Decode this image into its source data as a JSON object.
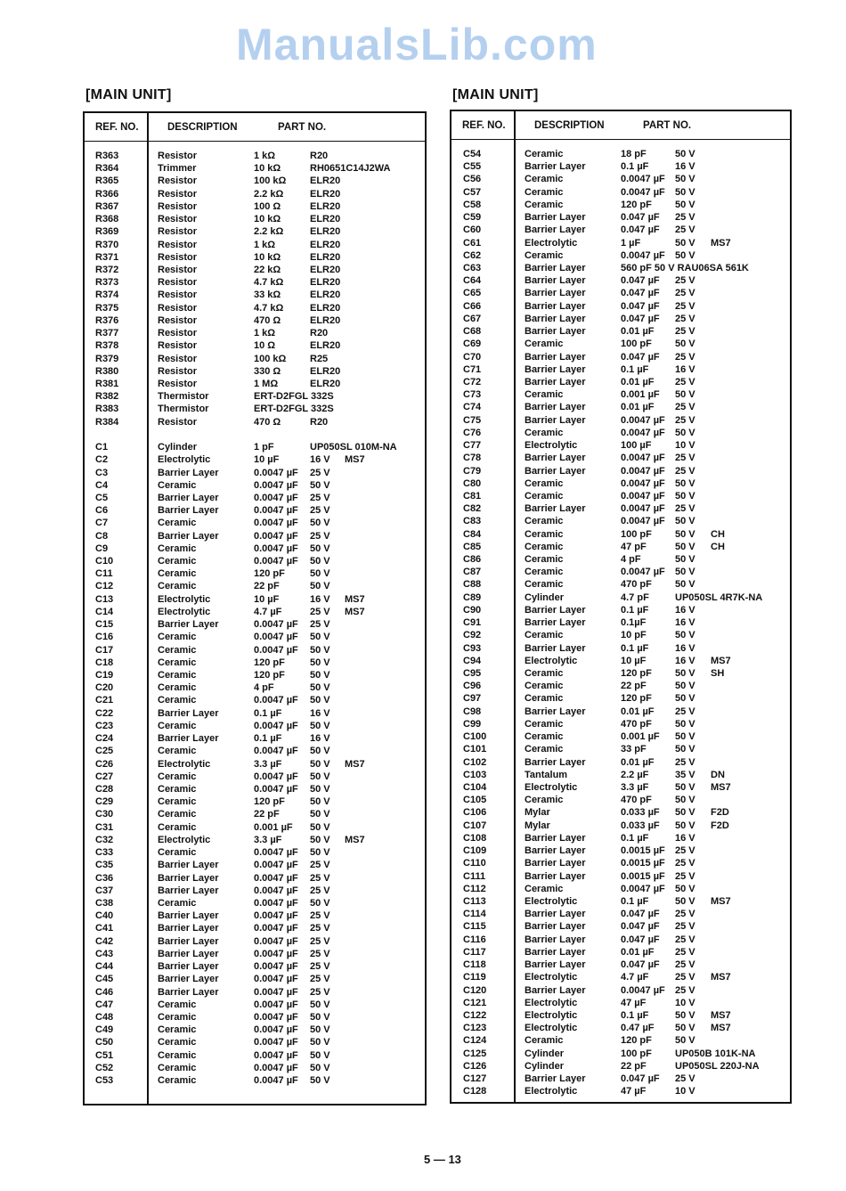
{
  "left": {
    "title": "[MAIN UNIT]",
    "headers": {
      "ref": "REF. NO.",
      "desc": "DESCRIPTION",
      "part": "PART NO."
    },
    "rows": [
      [
        "R363",
        "Resistor",
        "1 kΩ",
        "R20",
        ""
      ],
      [
        "R364",
        "Trimmer",
        "10 kΩ",
        "RH0651C14J2WA",
        ""
      ],
      [
        "R365",
        "Resistor",
        "100 kΩ",
        "ELR20",
        ""
      ],
      [
        "R366",
        "Resistor",
        "2.2 kΩ",
        "ELR20",
        ""
      ],
      [
        "R367",
        "Resistor",
        "100 Ω",
        "ELR20",
        ""
      ],
      [
        "R368",
        "Resistor",
        "10 kΩ",
        "ELR20",
        ""
      ],
      [
        "R369",
        "Resistor",
        "2.2 kΩ",
        "ELR20",
        ""
      ],
      [
        "R370",
        "Resistor",
        "1 kΩ",
        "ELR20",
        ""
      ],
      [
        "R371",
        "Resistor",
        "10 kΩ",
        "ELR20",
        ""
      ],
      [
        "R372",
        "Resistor",
        "22 kΩ",
        "ELR20",
        ""
      ],
      [
        "R373",
        "Resistor",
        "4.7 kΩ",
        "ELR20",
        ""
      ],
      [
        "R374",
        "Resistor",
        "33 kΩ",
        "ELR20",
        ""
      ],
      [
        "R375",
        "Resistor",
        "4.7 kΩ",
        "ELR20",
        ""
      ],
      [
        "R376",
        "Resistor",
        "470 Ω",
        "ELR20",
        ""
      ],
      [
        "R377",
        "Resistor",
        "1 kΩ",
        "R20",
        ""
      ],
      [
        "R378",
        "Resistor",
        "10 Ω",
        "ELR20",
        ""
      ],
      [
        "R379",
        "Resistor",
        "100 kΩ",
        "R25",
        ""
      ],
      [
        "R380",
        "Resistor",
        "330 Ω",
        "ELR20",
        ""
      ],
      [
        "R381",
        "Resistor",
        "1 MΩ",
        "ELR20",
        ""
      ],
      [
        "R382",
        "Thermistor",
        "ERT-D2FGL  332S",
        "",
        ""
      ],
      [
        "R383",
        "Thermistor",
        "ERT-D2FGL  332S",
        "",
        ""
      ],
      [
        "R384",
        "Resistor",
        "470 Ω",
        "R20",
        ""
      ],
      [
        "",
        "",
        "",
        "",
        ""
      ],
      [
        "C1",
        "Cylinder",
        "1 pF",
        "UP050SL  010M-NA",
        ""
      ],
      [
        "C2",
        "Electrolytic",
        "10 µF",
        "16 V",
        "MS7"
      ],
      [
        "C3",
        "Barrier Layer",
        "0.0047 µF",
        "25 V",
        ""
      ],
      [
        "C4",
        "Ceramic",
        "0.0047 µF",
        "50 V",
        ""
      ],
      [
        "C5",
        "Barrier Layer",
        "0.0047 µF",
        "25 V",
        ""
      ],
      [
        "C6",
        "Barrier Layer",
        "0.0047 µF",
        "25 V",
        ""
      ],
      [
        "C7",
        "Ceramic",
        "0.0047 µF",
        "50 V",
        ""
      ],
      [
        "C8",
        "Barrier Layer",
        "0.0047 µF",
        "25 V",
        ""
      ],
      [
        "C9",
        "Ceramic",
        "0.0047 µF",
        "50 V",
        ""
      ],
      [
        "C10",
        "Ceramic",
        "0.0047 µF",
        "50 V",
        ""
      ],
      [
        "C11",
        "Ceramic",
        "120 pF",
        "50 V",
        ""
      ],
      [
        "C12",
        "Ceramic",
        "22 pF",
        "50 V",
        ""
      ],
      [
        "C13",
        "Electrolytic",
        "10 µF",
        "16 V",
        "MS7"
      ],
      [
        "C14",
        "Electrolytic",
        "4.7 µF",
        "25 V",
        "MS7"
      ],
      [
        "C15",
        "Barrier Layer",
        "0.0047 µF",
        "25 V",
        ""
      ],
      [
        "C16",
        "Ceramic",
        "0.0047 µF",
        "50 V",
        ""
      ],
      [
        "C17",
        "Ceramic",
        "0.0047 µF",
        "50 V",
        ""
      ],
      [
        "C18",
        "Ceramic",
        "120 pF",
        "50 V",
        ""
      ],
      [
        "C19",
        "Ceramic",
        "120 pF",
        "50 V",
        ""
      ],
      [
        "C20",
        "Ceramic",
        "4 pF",
        "50 V",
        ""
      ],
      [
        "C21",
        "Ceramic",
        "0.0047 µF",
        "50 V",
        ""
      ],
      [
        "C22",
        "Barrier Layer",
        "0.1 µF",
        "16 V",
        ""
      ],
      [
        "C23",
        "Ceramic",
        "0.0047 µF",
        "50 V",
        ""
      ],
      [
        "C24",
        "Barrier Layer",
        "0.1 µF",
        "16 V",
        ""
      ],
      [
        "C25",
        "Ceramic",
        "0.0047 µF",
        "50 V",
        ""
      ],
      [
        "C26",
        "Electrolytic",
        "3.3 µF",
        "50 V",
        "MS7"
      ],
      [
        "C27",
        "Ceramic",
        "0.0047 µF",
        "50 V",
        ""
      ],
      [
        "C28",
        "Ceramic",
        "0.0047 µF",
        "50 V",
        ""
      ],
      [
        "C29",
        "Ceramic",
        "120 pF",
        "50 V",
        ""
      ],
      [
        "C30",
        "Ceramic",
        "22 pF",
        "50 V",
        ""
      ],
      [
        "C31",
        "Ceramic",
        "0.001 µF",
        "50 V",
        ""
      ],
      [
        "C32",
        "Electrolytic",
        "3.3 µF",
        "50 V",
        "MS7"
      ],
      [
        "C33",
        "Ceramic",
        "0.0047 µF",
        "50 V",
        ""
      ],
      [
        "C35",
        "Barrier Layer",
        "0.0047 µF",
        "25 V",
        ""
      ],
      [
        "C36",
        "Barrier Layer",
        "0.0047 µF",
        "25 V",
        ""
      ],
      [
        "C37",
        "Barrier Layer",
        "0.0047 µF",
        "25 V",
        ""
      ],
      [
        "C38",
        "Ceramic",
        "0.0047 µF",
        "50 V",
        ""
      ],
      [
        "C40",
        "Barrier Layer",
        "0.0047 µF",
        "25 V",
        ""
      ],
      [
        "C41",
        "Barrier Layer",
        "0.0047 µF",
        "25 V",
        ""
      ],
      [
        "C42",
        "Barrier Layer",
        "0.0047 µF",
        "25 V",
        ""
      ],
      [
        "C43",
        "Barrier Layer",
        "0.0047 µF",
        "25 V",
        ""
      ],
      [
        "C44",
        "Barrier Layer",
        "0.0047 µF",
        "25 V",
        ""
      ],
      [
        "C45",
        "Barrier Layer",
        "0.0047 µF",
        "25 V",
        ""
      ],
      [
        "C46",
        "Barrier Layer",
        "0.0047 µF",
        "25 V",
        ""
      ],
      [
        "C47",
        "Ceramic",
        "0.0047 µF",
        "50 V",
        ""
      ],
      [
        "C48",
        "Ceramic",
        "0.0047 µF",
        "50 V",
        ""
      ],
      [
        "C49",
        "Ceramic",
        "0.0047 µF",
        "50 V",
        ""
      ],
      [
        "C50",
        "Ceramic",
        "0.0047 µF",
        "50 V",
        ""
      ],
      [
        "C51",
        "Ceramic",
        "0.0047 µF",
        "50 V",
        ""
      ],
      [
        "C52",
        "Ceramic",
        "0.0047 µF",
        "50 V",
        ""
      ],
      [
        "C53",
        "Ceramic",
        "0.0047 µF",
        "50 V",
        ""
      ]
    ]
  },
  "right": {
    "title": "[MAIN UNIT]",
    "headers": {
      "ref": "REF. NO.",
      "desc": "DESCRIPTION",
      "part": "PART NO."
    },
    "rows": [
      [
        "C54",
        "Ceramic",
        "18 pF",
        "50 V",
        ""
      ],
      [
        "C55",
        "Barrier Layer",
        "0.1 µF",
        "16 V",
        ""
      ],
      [
        "C56",
        "Ceramic",
        "0.0047 µF",
        "50 V",
        ""
      ],
      [
        "C57",
        "Ceramic",
        "0.0047 µF",
        "50 V",
        ""
      ],
      [
        "C58",
        "Ceramic",
        "120 pF",
        "50 V",
        ""
      ],
      [
        "C59",
        "Barrier Layer",
        "0.047 µF",
        "25 V",
        ""
      ],
      [
        "C60",
        "Barrier Layer",
        "0.047 µF",
        "25 V",
        ""
      ],
      [
        "C61",
        "Electrolytic",
        "1 µF",
        "50 V",
        "MS7"
      ],
      [
        "C62",
        "Ceramic",
        "0.0047 µF",
        "50 V",
        ""
      ],
      [
        "C63",
        "Barrier Layer",
        "560 pF  50 V  RAU06SA  561K",
        "",
        ""
      ],
      [
        "C64",
        "Barrier Layer",
        "0.047 µF",
        "25 V",
        ""
      ],
      [
        "C65",
        "Barrier Layer",
        "0.047 µF",
        "25 V",
        ""
      ],
      [
        "C66",
        "Barrier Layer",
        "0.047 µF",
        "25 V",
        ""
      ],
      [
        "C67",
        "Barrier Layer",
        "0.047 µF",
        "25 V",
        ""
      ],
      [
        "C68",
        "Barrier Layer",
        "0.01 µF",
        "25 V",
        ""
      ],
      [
        "C69",
        "Ceramic",
        "100 pF",
        "50 V",
        ""
      ],
      [
        "C70",
        "Barrier Layer",
        "0.047 µF",
        "25 V",
        ""
      ],
      [
        "C71",
        "Barrier Layer",
        "0.1 µF",
        "16 V",
        ""
      ],
      [
        "C72",
        "Barrier Layer",
        "0.01 µF",
        "25 V",
        ""
      ],
      [
        "C73",
        "Ceramic",
        "0.001 µF",
        "50 V",
        ""
      ],
      [
        "C74",
        "Barrier Layer",
        "0.01 µF",
        "25 V",
        ""
      ],
      [
        "C75",
        "Barrier Layer",
        "0.0047 µF",
        "25 V",
        ""
      ],
      [
        "C76",
        "Ceramic",
        "0.0047 µF",
        "50 V",
        ""
      ],
      [
        "C77",
        "Electrolytic",
        "100 µF",
        "10 V",
        ""
      ],
      [
        "C78",
        "Barrier Layer",
        "0.0047 µF",
        "25 V",
        ""
      ],
      [
        "C79",
        "Barrier Layer",
        "0.0047 µF",
        "25 V",
        ""
      ],
      [
        "C80",
        "Ceramic",
        "0.0047 µF",
        "50 V",
        ""
      ],
      [
        "C81",
        "Ceramic",
        "0.0047 µF",
        "50 V",
        ""
      ],
      [
        "C82",
        "Barrier Layer",
        "0.0047 µF",
        "25 V",
        ""
      ],
      [
        "C83",
        "Ceramic",
        "0.0047 µF",
        "50 V",
        ""
      ],
      [
        "C84",
        "Ceramic",
        "100 pF",
        "50 V",
        "CH"
      ],
      [
        "C85",
        "Ceramic",
        "47 pF",
        "50 V",
        "CH"
      ],
      [
        "C86",
        "Ceramic",
        "4 pF",
        "50 V",
        ""
      ],
      [
        "C87",
        "Ceramic",
        "0.0047 µF",
        "50 V",
        ""
      ],
      [
        "C88",
        "Ceramic",
        "470 pF",
        "50 V",
        ""
      ],
      [
        "C89",
        "Cylinder",
        "4.7 pF",
        "UP050SL  4R7K-NA",
        ""
      ],
      [
        "C90",
        "Barrier Layer",
        "0.1 µF",
        "16 V",
        ""
      ],
      [
        "C91",
        "Barrier Layer",
        "0.1µF",
        "16 V",
        ""
      ],
      [
        "C92",
        "Ceramic",
        "10 pF",
        "50 V",
        ""
      ],
      [
        "C93",
        "Barrier Layer",
        "0.1 µF",
        "16 V",
        ""
      ],
      [
        "C94",
        "Electrolytic",
        "10 µF",
        "16 V",
        "MS7"
      ],
      [
        "C95",
        "Ceramic",
        "120 pF",
        "50 V",
        "SH"
      ],
      [
        "C96",
        "Ceramic",
        "22 pF",
        "50 V",
        ""
      ],
      [
        "C97",
        "Ceramic",
        "120 pF",
        "50 V",
        ""
      ],
      [
        "C98",
        "Barrier Layer",
        "0.01 µF",
        "25 V",
        ""
      ],
      [
        "C99",
        "Ceramic",
        "470 pF",
        "50 V",
        ""
      ],
      [
        "C100",
        "Ceramic",
        "0.001 µF",
        "50 V",
        ""
      ],
      [
        "C101",
        "Ceramic",
        "33 pF",
        "50 V",
        ""
      ],
      [
        "C102",
        "Barrier Layer",
        "0.01 µF",
        "25 V",
        ""
      ],
      [
        "C103",
        "Tantalum",
        "2.2 µF",
        "35 V",
        "DN"
      ],
      [
        "C104",
        "Electrolytic",
        "3.3 µF",
        "50 V",
        "MS7"
      ],
      [
        "C105",
        "Ceramic",
        "470 pF",
        "50 V",
        ""
      ],
      [
        "C106",
        "Mylar",
        "0.033 µF",
        "50 V",
        "F2D"
      ],
      [
        "C107",
        "Mylar",
        "0.033 µF",
        "50 V",
        "F2D"
      ],
      [
        "C108",
        "Barrier Layer",
        "0.1 µF",
        "16 V",
        ""
      ],
      [
        "C109",
        "Barrier Layer",
        "0.0015 µF",
        "25 V",
        ""
      ],
      [
        "C110",
        "Barrier Layer",
        "0.0015 µF",
        "25 V",
        ""
      ],
      [
        "C111",
        "Barrier Layer",
        "0.0015 µF",
        "25 V",
        ""
      ],
      [
        "C112",
        "Ceramic",
        "0.0047 µF",
        "50 V",
        ""
      ],
      [
        "C113",
        "Electrolytic",
        "0.1 µF",
        "50 V",
        "MS7"
      ],
      [
        "C114",
        "Barrier Layer",
        "0.047 µF",
        "25 V",
        ""
      ],
      [
        "C115",
        "Barrier Layer",
        "0.047 µF",
        "25 V",
        ""
      ],
      [
        "C116",
        "Barrier Layer",
        "0.047 µF",
        "25 V",
        ""
      ],
      [
        "C117",
        "Barrier Layer",
        "0.01 µF",
        "25 V",
        ""
      ],
      [
        "C118",
        "Barrier Layer",
        "0.047 µF",
        "25 V",
        ""
      ],
      [
        "C119",
        "Electrolytic",
        "4.7 µF",
        "25 V",
        "MS7"
      ],
      [
        "C120",
        "Barrier Layer",
        "0.0047 µF",
        "25 V",
        ""
      ],
      [
        "C121",
        "Electrolytic",
        "47 µF",
        "10 V",
        ""
      ],
      [
        "C122",
        "Electrolytic",
        "0.1 µF",
        "50 V",
        "MS7"
      ],
      [
        "C123",
        "Electrolytic",
        "0.47 µF",
        "50 V",
        "MS7"
      ],
      [
        "C124",
        "Ceramic",
        "120 pF",
        "50 V",
        ""
      ],
      [
        "C125",
        "Cylinder",
        "100 pF",
        "UP050B  101K-NA",
        ""
      ],
      [
        "C126",
        "Cylinder",
        "22 pF",
        "UP050SL  220J-NA",
        ""
      ],
      [
        "C127",
        "Barrier Layer",
        "0.047 µF",
        "25 V",
        ""
      ],
      [
        "C128",
        "Electrolytic",
        "47 µF",
        "10 V",
        ""
      ]
    ]
  },
  "watermark": "ManualsLib.com",
  "footer": {
    "page_number": "5 — 13"
  }
}
